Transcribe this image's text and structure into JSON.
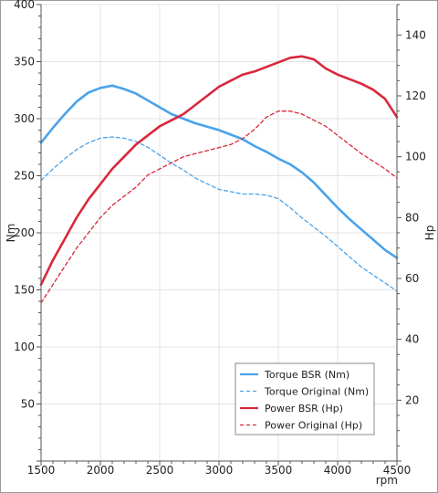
{
  "chart_data": {
    "type": "line",
    "xlabel": "rpm",
    "ylabel_left": "Nm",
    "ylabel_right": "Hp",
    "xlim": [
      1500,
      4500
    ],
    "ylim_left": [
      0,
      400
    ],
    "ylim_right": [
      0,
      150
    ],
    "x_ticks": [
      1500,
      2000,
      2500,
      3000,
      3500,
      4000,
      4500
    ],
    "y_left_ticks": [
      50,
      100,
      150,
      200,
      250,
      300,
      350,
      400
    ],
    "y_right_ticks": [
      20,
      40,
      60,
      80,
      100,
      120,
      140
    ],
    "grid": true,
    "legend_position": "bottom-right",
    "colors": {
      "torque": "#4aa3ea",
      "power": "#d8283c"
    },
    "series": [
      {
        "name": "Torque BSR (Nm)",
        "axis": "left",
        "style": "solid",
        "color": "#4aa3ea",
        "x": [
          1500,
          1600,
          1700,
          1800,
          1900,
          2000,
          2100,
          2200,
          2300,
          2400,
          2500,
          2600,
          2700,
          2800,
          2900,
          3000,
          3100,
          3200,
          3300,
          3400,
          3500,
          3600,
          3700,
          3800,
          3900,
          4000,
          4100,
          4200,
          4300,
          4400,
          4500
        ],
        "values": [
          279,
          292,
          304,
          315,
          323,
          327,
          329,
          326,
          322,
          316,
          310,
          304,
          300,
          296,
          293,
          290,
          286,
          282,
          276,
          271,
          265,
          260,
          253,
          244,
          233,
          222,
          212,
          203,
          194,
          185,
          178
        ]
      },
      {
        "name": "Torque Original (Nm)",
        "axis": "left",
        "style": "dashed",
        "color": "#4aa3ea",
        "x": [
          1500,
          1600,
          1700,
          1800,
          1900,
          2000,
          2100,
          2200,
          2300,
          2400,
          2500,
          2600,
          2700,
          2800,
          2900,
          3000,
          3100,
          3200,
          3300,
          3400,
          3500,
          3600,
          3700,
          3800,
          3900,
          4000,
          4100,
          4200,
          4300,
          4400,
          4500
        ],
        "values": [
          246,
          256,
          265,
          273,
          279,
          283,
          284,
          283,
          280,
          275,
          268,
          261,
          255,
          248,
          243,
          238,
          236,
          234,
          234,
          233,
          230,
          222,
          213,
          205,
          197,
          188,
          179,
          170,
          163,
          156,
          149
        ]
      },
      {
        "name": "Power BSR (Hp)",
        "axis": "right",
        "style": "solid",
        "color": "#d8283c",
        "x": [
          1500,
          1600,
          1700,
          1800,
          1900,
          2000,
          2100,
          2200,
          2300,
          2400,
          2500,
          2600,
          2700,
          2800,
          2900,
          3000,
          3100,
          3200,
          3300,
          3400,
          3500,
          3600,
          3700,
          3800,
          3900,
          4000,
          4100,
          4200,
          4300,
          4400,
          4500
        ],
        "values": [
          58,
          66,
          73,
          80,
          86,
          91,
          96,
          100,
          104,
          107,
          110,
          112,
          114,
          117,
          120,
          123,
          125,
          127,
          128,
          129.5,
          131,
          132.5,
          133,
          132,
          129,
          127,
          125.5,
          124,
          122,
          119,
          113
        ]
      },
      {
        "name": "Power Original (Hp)",
        "axis": "right",
        "style": "dashed",
        "color": "#d8283c",
        "x": [
          1500,
          1600,
          1700,
          1800,
          1900,
          2000,
          2100,
          2200,
          2300,
          2400,
          2500,
          2600,
          2700,
          2800,
          2900,
          3000,
          3100,
          3200,
          3300,
          3400,
          3500,
          3600,
          3700,
          3800,
          3900,
          4000,
          4100,
          4200,
          4300,
          4400,
          4500
        ],
        "values": [
          52,
          58,
          64,
          70,
          75,
          80,
          84,
          87,
          90,
          94,
          96,
          98,
          100,
          101,
          102,
          103,
          104,
          106,
          109,
          113,
          115,
          115,
          114,
          112,
          110,
          107,
          104,
          101,
          98.5,
          96,
          93
        ]
      }
    ]
  }
}
